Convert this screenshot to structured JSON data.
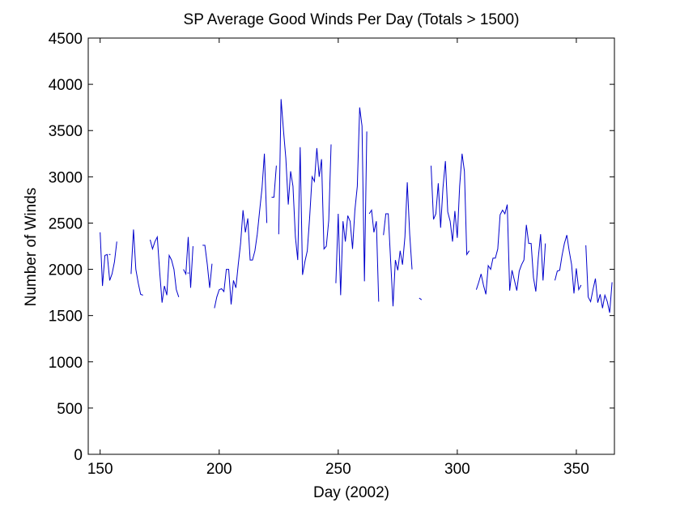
{
  "chart_data": {
    "type": "line",
    "title": "SP Average Good Winds Per Day (Totals > 1500)",
    "xlabel": "Day (2002)",
    "ylabel": "Number of Winds",
    "xlim": [
      145,
      366
    ],
    "ylim": [
      0,
      4500
    ],
    "xticks": [
      150,
      200,
      250,
      300,
      350
    ],
    "yticks": [
      0,
      500,
      1000,
      1500,
      2000,
      2500,
      3000,
      3500,
      4000,
      4500
    ],
    "grid": false,
    "line_color": "#0000cc",
    "series": [
      {
        "segments": [
          [
            [
              150,
              2400
            ],
            [
              151,
              1820
            ],
            [
              152,
              2150
            ],
            [
              153,
              2160
            ],
            [
              154,
              1880
            ],
            [
              155,
              1950
            ],
            [
              156,
              2080
            ],
            [
              157,
              2300
            ]
          ],
          [
            [
              163,
              1950
            ],
            [
              164,
              2430
            ],
            [
              165,
              2000
            ],
            [
              166,
              1850
            ],
            [
              167,
              1730
            ],
            [
              168,
              1720
            ]
          ],
          [
            [
              171,
              2320
            ],
            [
              172,
              2220
            ],
            [
              173,
              2300
            ],
            [
              174,
              2350
            ],
            [
              175,
              1980
            ],
            [
              176,
              1640
            ],
            [
              177,
              1820
            ],
            [
              178,
              1720
            ],
            [
              179,
              2150
            ],
            [
              180,
              2100
            ],
            [
              181,
              2000
            ],
            [
              182,
              1780
            ],
            [
              183,
              1700
            ]
          ],
          [
            [
              185,
              2000
            ],
            [
              186,
              1950
            ],
            [
              187,
              2350
            ],
            [
              188,
              1800
            ],
            [
              189,
              2250
            ]
          ],
          [
            [
              193,
              2260
            ],
            [
              194,
              2260
            ],
            [
              195,
              2050
            ],
            [
              196,
              1800
            ],
            [
              197,
              2060
            ]
          ],
          [
            [
              198,
              1580
            ],
            [
              199,
              1700
            ],
            [
              200,
              1780
            ],
            [
              201,
              1790
            ],
            [
              202,
              1760
            ],
            [
              203,
              2000
            ],
            [
              204,
              2000
            ],
            [
              205,
              1620
            ],
            [
              206,
              1880
            ],
            [
              207,
              1800
            ],
            [
              208,
              2050
            ],
            [
              209,
              2280
            ],
            [
              210,
              2640
            ],
            [
              211,
              2400
            ],
            [
              212,
              2550
            ],
            [
              213,
              2100
            ],
            [
              214,
              2100
            ],
            [
              215,
              2200
            ],
            [
              216,
              2380
            ],
            [
              217,
              2640
            ],
            [
              218,
              2880
            ],
            [
              219,
              3250
            ],
            [
              220,
              2500
            ]
          ],
          [
            [
              222,
              2780
            ],
            [
              223,
              2780
            ],
            [
              224,
              3120
            ]
          ],
          [
            [
              225,
              2380
            ],
            [
              226,
              3840
            ],
            [
              227,
              3500
            ],
            [
              228,
              3200
            ],
            [
              229,
              2700
            ],
            [
              230,
              3060
            ],
            [
              231,
              2900
            ],
            [
              232,
              2350
            ],
            [
              233,
              2100
            ],
            [
              234,
              3320
            ],
            [
              235,
              1940
            ],
            [
              236,
              2080
            ],
            [
              237,
              2200
            ],
            [
              238,
              2560
            ],
            [
              239,
              3000
            ],
            [
              240,
              2950
            ],
            [
              241,
              3310
            ],
            [
              242,
              3000
            ],
            [
              243,
              3190
            ],
            [
              244,
              2220
            ],
            [
              245,
              2250
            ],
            [
              246,
              2530
            ],
            [
              247,
              3350
            ]
          ],
          [
            [
              249,
              1850
            ],
            [
              250,
              2600
            ],
            [
              251,
              1720
            ],
            [
              252,
              2520
            ],
            [
              253,
              2300
            ],
            [
              254,
              2580
            ],
            [
              255,
              2520
            ],
            [
              256,
              2220
            ],
            [
              257,
              2640
            ],
            [
              258,
              2900
            ],
            [
              259,
              3750
            ],
            [
              260,
              3550
            ],
            [
              261,
              1870
            ],
            [
              262,
              3490
            ]
          ],
          [
            [
              263,
              2600
            ],
            [
              264,
              2640
            ],
            [
              265,
              2400
            ],
            [
              266,
              2520
            ],
            [
              267,
              1650
            ]
          ],
          [
            [
              269,
              2370
            ],
            [
              270,
              2600
            ],
            [
              271,
              2600
            ],
            [
              272,
              2100
            ],
            [
              273,
              1600
            ],
            [
              274,
              2100
            ],
            [
              275,
              1990
            ],
            [
              276,
              2200
            ],
            [
              277,
              2050
            ],
            [
              278,
              2350
            ],
            [
              279,
              2940
            ],
            [
              280,
              2380
            ],
            [
              281,
              2000
            ]
          ],
          [
            [
              284,
              1690
            ],
            [
              285,
              1670
            ]
          ],
          [
            [
              289,
              3120
            ],
            [
              290,
              2540
            ],
            [
              291,
              2600
            ],
            [
              292,
              2930
            ],
            [
              293,
              2450
            ],
            [
              294,
              2880
            ],
            [
              295,
              3170
            ],
            [
              296,
              2620
            ],
            [
              297,
              2520
            ],
            [
              298,
              2300
            ],
            [
              299,
              2630
            ],
            [
              300,
              2340
            ],
            [
              301,
              2900
            ],
            [
              302,
              3250
            ],
            [
              303,
              3060
            ],
            [
              304,
              2160
            ],
            [
              305,
              2200
            ]
          ],
          [
            [
              308,
              1780
            ],
            [
              309,
              1860
            ],
            [
              310,
              1950
            ],
            [
              311,
              1830
            ],
            [
              312,
              1730
            ],
            [
              313,
              2040
            ],
            [
              314,
              2000
            ],
            [
              315,
              2120
            ],
            [
              316,
              2120
            ],
            [
              317,
              2220
            ],
            [
              318,
              2590
            ],
            [
              319,
              2640
            ],
            [
              320,
              2600
            ],
            [
              321,
              2700
            ],
            [
              322,
              1770
            ],
            [
              323,
              1990
            ],
            [
              324,
              1880
            ],
            [
              325,
              1770
            ],
            [
              326,
              1980
            ],
            [
              327,
              2050
            ],
            [
              328,
              2100
            ],
            [
              329,
              2480
            ],
            [
              330,
              2280
            ],
            [
              331,
              2280
            ],
            [
              332,
              1910
            ],
            [
              333,
              1760
            ],
            [
              334,
              2120
            ],
            [
              335,
              2380
            ],
            [
              336,
              1880
            ],
            [
              337,
              2280
            ]
          ],
          [
            [
              341,
              1880
            ],
            [
              342,
              1980
            ],
            [
              343,
              1990
            ],
            [
              344,
              2150
            ],
            [
              345,
              2280
            ],
            [
              346,
              2370
            ],
            [
              347,
              2200
            ],
            [
              348,
              2050
            ],
            [
              349,
              1740
            ],
            [
              350,
              2010
            ],
            [
              351,
              1780
            ],
            [
              352,
              1830
            ]
          ],
          [
            [
              354,
              2260
            ],
            [
              355,
              1700
            ],
            [
              356,
              1650
            ],
            [
              357,
              1780
            ],
            [
              358,
              1900
            ],
            [
              359,
              1640
            ],
            [
              360,
              1730
            ],
            [
              361,
              1580
            ],
            [
              362,
              1720
            ],
            [
              363,
              1650
            ],
            [
              364,
              1530
            ],
            [
              365,
              1860
            ]
          ]
        ],
        "points": [
          [
            154,
            2160
          ],
          [
            187,
            1960
          ]
        ]
      }
    ]
  }
}
